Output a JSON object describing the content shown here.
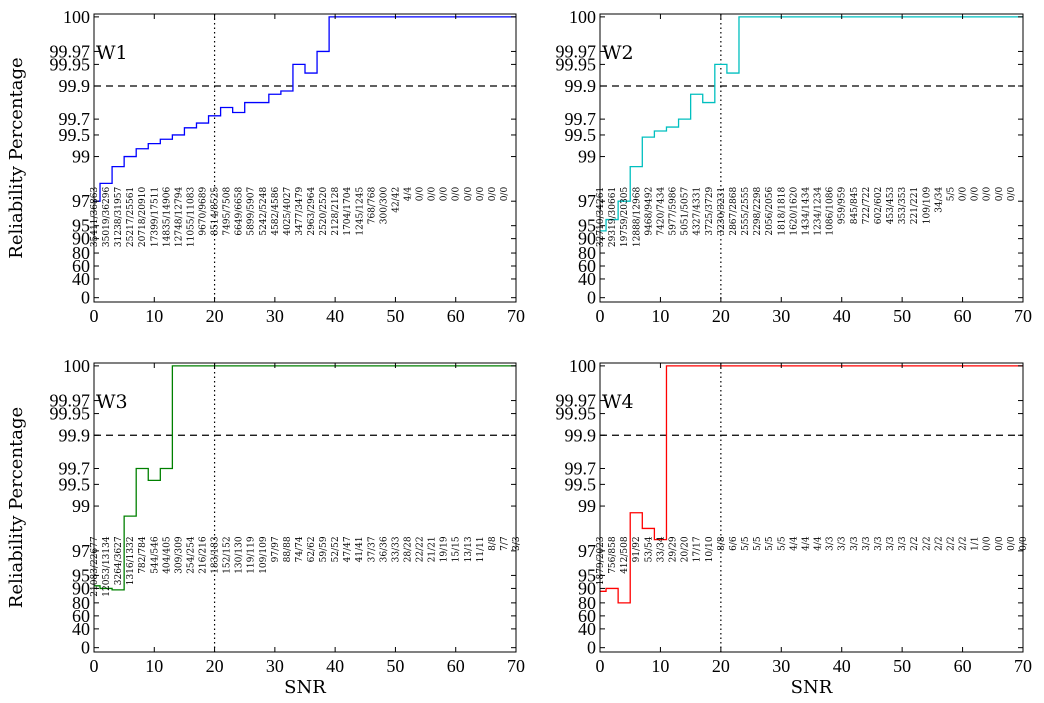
{
  "figure": {
    "x_ticks": [
      "0",
      "10",
      "20",
      "30",
      "40",
      "50",
      "60",
      "70"
    ],
    "y_ticks": [
      "0",
      "40",
      "60",
      "80",
      "90",
      "95",
      "97",
      "99",
      "99.5",
      "99.7",
      "99.9",
      "99.95",
      "99.97",
      "100"
    ]
  },
  "chart_data": [
    {
      "type": "line",
      "panel_label": "W1",
      "color": "#0000ff",
      "ylabel": "Reliability Percentage",
      "xlabel": "",
      "xlim": [
        0,
        70
      ],
      "y_scale": "nonlinear (labelled ticks)",
      "threshold_y": 99.9,
      "vline_x": 20,
      "step_x": [
        0,
        1,
        3,
        5,
        7,
        9,
        11,
        13,
        15,
        17,
        19,
        21,
        23,
        25,
        27,
        29,
        31,
        33,
        35,
        37,
        39,
        70
      ],
      "step_y": [
        97.0,
        97.8,
        98.55,
        99.0,
        99.18,
        99.3,
        99.4,
        99.5,
        99.59,
        99.65,
        99.72,
        99.77,
        99.74,
        99.8,
        99.8,
        99.85,
        99.87,
        99.95,
        99.93,
        99.97,
        100,
        100
      ],
      "counts": [
        "35411/36863",
        "35019/36296",
        "31238/31957",
        "25217/25561",
        "20718/20910",
        "17399/17511",
        "14835/14906",
        "12748/12794",
        "11055/11083",
        "9670/9689",
        "8514/8525",
        "7495/7508",
        "6649/6658",
        "5899/5907",
        "5242/5248",
        "4582/4586",
        "4025/4027",
        "3477/3479",
        "2963/2964",
        "2520/2520",
        "2128/2128",
        "1704/1704",
        "1245/1245",
        "768/768",
        "300/300",
        "42/42",
        "4/4",
        "0/0",
        "0/0",
        "0/0",
        "0/0",
        "0/0",
        "0/0",
        "0/0",
        "0/0"
      ]
    },
    {
      "type": "line",
      "panel_label": "W2",
      "color": "#00bfbf",
      "ylabel": "",
      "xlabel": "",
      "xlim": [
        0,
        70
      ],
      "y_scale": "nonlinear (labelled ticks)",
      "threshold_y": 99.9,
      "vline_x": 20,
      "step_x": [
        0,
        1,
        3,
        5,
        7,
        9,
        11,
        13,
        15,
        17,
        19,
        21,
        23,
        70
      ],
      "step_y": [
        93.0,
        95.5,
        97.0,
        98.55,
        99.45,
        99.55,
        99.6,
        99.7,
        99.85,
        99.8,
        99.95,
        99.93,
        100,
        100
      ],
      "counts": [
        "32710/34261",
        "29319/30661",
        "19759/20305",
        "12888/12968",
        "9468/9492",
        "7420/7434",
        "5977/5986",
        "5051/5057",
        "4327/4331",
        "3725/3729",
        "3230/3231",
        "2867/2868",
        "2555/2555",
        "2298/2298",
        "2056/2056",
        "1818/1818",
        "1620/1620",
        "1434/1434",
        "1234/1234",
        "1086/1086",
        "959/959",
        "845/845",
        "722/722",
        "602/602",
        "453/453",
        "353/353",
        "221/221",
        "109/109",
        "34/34",
        "5/5",
        "0/0",
        "0/0",
        "0/0",
        "0/0",
        "0/0"
      ]
    },
    {
      "type": "line",
      "panel_label": "W3",
      "color": "#008000",
      "ylabel": "Reliability Percentage",
      "xlabel": "SNR",
      "xlim": [
        0,
        70
      ],
      "y_scale": "nonlinear (labelled ticks)",
      "threshold_y": 99.9,
      "vline_x": 20,
      "step_x": [
        0,
        1,
        3,
        5,
        7,
        9,
        11,
        13,
        70
      ],
      "step_y": [
        91.0,
        90.0,
        89.0,
        98.55,
        99.7,
        99.55,
        99.7,
        100,
        100
      ],
      "counts": [
        "21083/22677",
        "12053/13134",
        "3264/3627",
        "1316/1332",
        "782/784",
        "544/546",
        "404/405",
        "309/309",
        "254/254",
        "216/216",
        "183/183",
        "152/152",
        "130/130",
        "119/119",
        "109/109",
        "97/97",
        "88/88",
        "74/74",
        "62/62",
        "59/59",
        "52/52",
        "47/47",
        "41/41",
        "37/37",
        "36/36",
        "33/33",
        "28/28",
        "22/22",
        "21/21",
        "19/19",
        "15/15",
        "13/13",
        "11/11",
        "8/8",
        "7/7",
        "3/3"
      ]
    },
    {
      "type": "line",
      "panel_label": "W4",
      "color": "#ff0000",
      "ylabel": "",
      "xlabel": "SNR",
      "xlim": [
        0,
        70
      ],
      "y_scale": "nonlinear (labelled ticks)",
      "threshold_y": 99.9,
      "vline_x": 20,
      "step_x": [
        0,
        1,
        3,
        5,
        7,
        9,
        11,
        70
      ],
      "step_y": [
        88.0,
        90.0,
        80.0,
        98.7,
        98.0,
        97.5,
        100,
        100
      ],
      "counts": [
        "1879/2023",
        "756/858",
        "412/508",
        "91/92",
        "53/54",
        "33/34",
        "29/29",
        "20/20",
        "17/17",
        "10/10",
        "8/8",
        "6/6",
        "5/5",
        "5/5",
        "5/5",
        "5/5",
        "4/4",
        "4/4",
        "4/4",
        "3/3",
        "3/3",
        "3/3",
        "3/3",
        "3/3",
        "3/3",
        "3/3",
        "2/2",
        "2/2",
        "2/2",
        "2/2",
        "2/2",
        "1/1",
        "0/0",
        "0/0",
        "0/0",
        "0/0"
      ]
    }
  ]
}
